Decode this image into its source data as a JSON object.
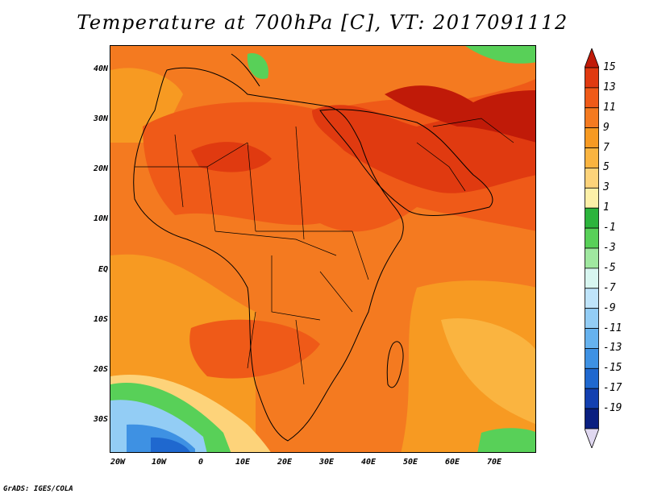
{
  "title": "Temperature at 700hPa [C], VT: 2017091112",
  "footer": "GrADS: IGES/COLA",
  "y_axis": {
    "labels": [
      "40N",
      "30N",
      "20N",
      "10N",
      "EQ",
      "10S",
      "20S",
      "30S"
    ]
  },
  "x_axis": {
    "labels": [
      "20W",
      "10W",
      "0",
      "10E",
      "20E",
      "30E",
      "40E",
      "50E",
      "60E",
      "70E"
    ]
  },
  "colorbar": {
    "labels": [
      "15",
      "13",
      "11",
      "9",
      "7",
      "5",
      "3",
      "1",
      "-1",
      "-3",
      "-5",
      "-7",
      "-9",
      "-11",
      "-13",
      "-15",
      "-17",
      "-19"
    ],
    "colors": [
      "#c01a08",
      "#e03a10",
      "#ef5a18",
      "#f47a20",
      "#f79a22",
      "#fab440",
      "#fdd37a",
      "#fdf0a8",
      "#2cb43c",
      "#58d058",
      "#a0e8a0",
      "#d8f6f0",
      "#bfe4fa",
      "#93cdf5",
      "#66b2ee",
      "#3e91e3",
      "#1f68cf",
      "#1340b0",
      "#0a1f80",
      "#e0d8f0"
    ]
  },
  "map": {
    "lon_range": [
      -22,
      80
    ],
    "lat_range": [
      -37,
      45
    ],
    "field_colors": {
      "hot": "#e03a10",
      "very_hot": "#c01a08",
      "warm": "#ef5a18",
      "mid": "#f47a20",
      "mild": "#f79a22",
      "cool": "#fab440",
      "pale": "#fdd37a",
      "green": "#58d058",
      "blue_light": "#93cdf5",
      "blue": "#3e91e3",
      "blue_dark": "#1f68cf"
    }
  }
}
